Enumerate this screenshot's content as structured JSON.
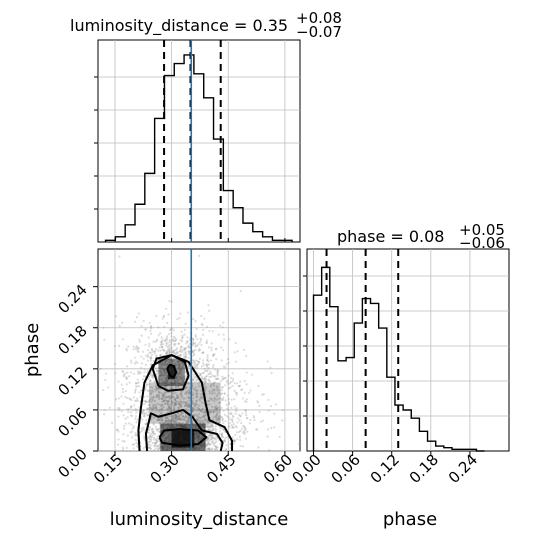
{
  "chart_data": {
    "type": "corner",
    "colors": {
      "truth": "#1f77b4",
      "hist": "#000000",
      "quantile": "#000000",
      "grid": "#bdbdbd",
      "points": "#9e9e9e"
    },
    "grid": true,
    "parameters": [
      {
        "name": "luminosity_distance",
        "median": 0.35,
        "plus": 0.08,
        "minus": 0.07
      },
      {
        "name": "phase",
        "median": 0.08,
        "plus": 0.05,
        "minus": 0.06
      }
    ],
    "titles": {
      "luminosity_distance": {
        "main": "luminosity_distance = 0.35",
        "sup": "+0.08",
        "sub": "−0.07"
      },
      "phase": {
        "main": "phase = 0.08",
        "sup": "+0.05",
        "sub": "−0.06"
      }
    },
    "xlabels": {
      "left": "luminosity_distance",
      "right": "phase"
    },
    "ylabel": "phase",
    "truth": {
      "luminosity_distance": 0.352
    },
    "luminosity_distance_hist": {
      "xlim": [
        0.105,
        0.64
      ],
      "quantiles": [
        0.28,
        0.35,
        0.43
      ],
      "bins": [
        0.125,
        0.151,
        0.177,
        0.203,
        0.229,
        0.255,
        0.281,
        0.307,
        0.333,
        0.359,
        0.385,
        0.411,
        0.437,
        0.463,
        0.489,
        0.515,
        0.541,
        0.567,
        0.593,
        0.619
      ],
      "counts": [
        1,
        3,
        10,
        22,
        40,
        72,
        97,
        104,
        109,
        98,
        84,
        60,
        30,
        20,
        11,
        6,
        3,
        1,
        1
      ]
    },
    "phase_hist": {
      "xlim": [
        -0.01,
        0.3
      ],
      "quantiles": [
        0.02,
        0.08,
        0.13
      ],
      "bins": [
        0.0,
        0.0125,
        0.025,
        0.0375,
        0.05,
        0.0625,
        0.075,
        0.0875,
        0.1,
        0.1125,
        0.125,
        0.1375,
        0.15,
        0.1625,
        0.175,
        0.1875,
        0.2,
        0.2125,
        0.225,
        0.2375,
        0.25,
        0.2625
      ],
      "counts": [
        95,
        112,
        88,
        55,
        57,
        78,
        93,
        90,
        75,
        45,
        28,
        25,
        20,
        12,
        6,
        3,
        2,
        1,
        1,
        1,
        0
      ]
    },
    "scatter_2d": {
      "xlim": [
        0.105,
        0.64
      ],
      "ylim": [
        0.0,
        0.295
      ],
      "x_ticks": [
        "0.15",
        "0.30",
        "0.45",
        "0.60"
      ],
      "y_ticks": [
        "0.00",
        "0.06",
        "0.12",
        "0.18",
        "0.24"
      ],
      "contours": [
        {
          "level": "outer",
          "points": [
            [
              0.215,
              0.0
            ],
            [
              0.212,
              0.03
            ],
            [
              0.218,
              0.06
            ],
            [
              0.228,
              0.1
            ],
            [
              0.25,
              0.125
            ],
            [
              0.3,
              0.14
            ],
            [
              0.345,
              0.13
            ],
            [
              0.38,
              0.1
            ],
            [
              0.39,
              0.07
            ],
            [
              0.4,
              0.045
            ],
            [
              0.44,
              0.035
            ],
            [
              0.46,
              0.015
            ],
            [
              0.46,
              0.0
            ]
          ]
        },
        {
          "level": "middle",
          "points": [
            [
              0.235,
              0.0
            ],
            [
              0.232,
              0.025
            ],
            [
              0.245,
              0.055
            ],
            [
              0.265,
              0.05
            ],
            [
              0.3,
              0.055
            ],
            [
              0.33,
              0.06
            ],
            [
              0.355,
              0.05
            ],
            [
              0.38,
              0.03
            ],
            [
              0.42,
              0.025
            ],
            [
              0.435,
              0.012
            ],
            [
              0.43,
              0.0
            ]
          ]
        },
        {
          "level": "middle_upper",
          "points": [
            [
              0.265,
              0.095
            ],
            [
              0.25,
              0.12
            ],
            [
              0.26,
              0.135
            ],
            [
              0.3,
              0.14
            ],
            [
              0.335,
              0.13
            ],
            [
              0.345,
              0.11
            ],
            [
              0.33,
              0.09
            ],
            [
              0.29,
              0.088
            ],
            [
              0.265,
              0.095
            ]
          ]
        },
        {
          "level": "inner_upper",
          "points": [
            [
              0.288,
              0.12
            ],
            [
              0.296,
              0.11
            ],
            [
              0.306,
              0.108
            ],
            [
              0.312,
              0.115
            ],
            [
              0.306,
              0.124
            ],
            [
              0.296,
              0.126
            ],
            [
              0.288,
              0.12
            ]
          ]
        },
        {
          "level": "inner_lower",
          "points": [
            [
              0.268,
              0.02
            ],
            [
              0.275,
              0.012
            ],
            [
              0.32,
              0.008
            ],
            [
              0.37,
              0.01
            ],
            [
              0.392,
              0.02
            ],
            [
              0.37,
              0.03
            ],
            [
              0.32,
              0.032
            ],
            [
              0.28,
              0.03
            ],
            [
              0.268,
              0.02
            ]
          ]
        }
      ],
      "density_clusters": [
        {
          "x": 0.33,
          "y": 0.025,
          "sx": 0.06,
          "sy": 0.025,
          "n": 900
        },
        {
          "x": 0.3,
          "y": 0.115,
          "sx": 0.05,
          "sy": 0.03,
          "n": 700
        },
        {
          "x": 0.34,
          "y": 0.07,
          "sx": 0.09,
          "sy": 0.06,
          "n": 1100
        }
      ]
    },
    "phase_x_ticks": [
      "0.00",
      "0.06",
      "0.12",
      "0.18",
      "0.24"
    ]
  }
}
